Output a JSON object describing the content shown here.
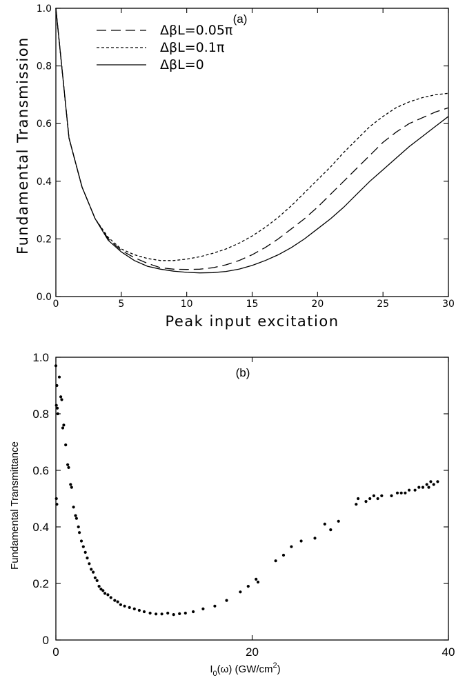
{
  "chart_data": [
    {
      "type": "line",
      "panel_label": "(a)",
      "title": "",
      "xlabel": "Peak input excitation",
      "ylabel": "Fundamental Transmission",
      "xlim": [
        0,
        30
      ],
      "ylim": [
        0,
        1.0
      ],
      "x_ticks": [
        0,
        5,
        10,
        15,
        20,
        25,
        30
      ],
      "y_ticks": [
        0.0,
        0.2,
        0.4,
        0.6,
        0.8,
        1.0
      ],
      "y_tick_labels": [
        "0.0",
        "0.2",
        "0.4",
        "0.6",
        "0.8",
        "1.0"
      ],
      "grid": false,
      "legend_position": "upper-left",
      "series": [
        {
          "name": "ΔβL=0.05π",
          "style": "dashed",
          "x": [
            0,
            1,
            2,
            3,
            4,
            5,
            6,
            7,
            8,
            9,
            10,
            11,
            12,
            13,
            14,
            15,
            16,
            17,
            18,
            19,
            20,
            21,
            22,
            23,
            24,
            25,
            26,
            27,
            28,
            29,
            30
          ],
          "y": [
            1.0,
            0.55,
            0.38,
            0.27,
            0.2,
            0.16,
            0.135,
            0.115,
            0.1,
            0.095,
            0.094,
            0.095,
            0.1,
            0.11,
            0.125,
            0.145,
            0.17,
            0.2,
            0.235,
            0.27,
            0.31,
            0.355,
            0.4,
            0.445,
            0.49,
            0.535,
            0.57,
            0.6,
            0.62,
            0.64,
            0.655
          ]
        },
        {
          "name": "ΔβL=0.1π",
          "style": "dotted",
          "x": [
            0,
            1,
            2,
            3,
            4,
            5,
            6,
            7,
            8,
            9,
            10,
            11,
            12,
            13,
            14,
            15,
            16,
            17,
            18,
            19,
            20,
            21,
            22,
            23,
            24,
            25,
            26,
            27,
            28,
            29,
            30
          ],
          "y": [
            1.0,
            0.55,
            0.38,
            0.27,
            0.205,
            0.165,
            0.145,
            0.132,
            0.125,
            0.125,
            0.13,
            0.138,
            0.15,
            0.165,
            0.185,
            0.21,
            0.24,
            0.275,
            0.315,
            0.36,
            0.405,
            0.45,
            0.5,
            0.545,
            0.59,
            0.625,
            0.655,
            0.675,
            0.69,
            0.7,
            0.705
          ]
        },
        {
          "name": "ΔβL=0",
          "style": "solid",
          "x": [
            0,
            1,
            2,
            3,
            4,
            5,
            6,
            7,
            8,
            9,
            10,
            11,
            12,
            13,
            14,
            15,
            16,
            17,
            18,
            19,
            20,
            21,
            22,
            23,
            24,
            25,
            26,
            27,
            28,
            29,
            30
          ],
          "y": [
            1.0,
            0.55,
            0.38,
            0.27,
            0.195,
            0.155,
            0.125,
            0.105,
            0.095,
            0.088,
            0.084,
            0.082,
            0.083,
            0.087,
            0.095,
            0.108,
            0.125,
            0.145,
            0.17,
            0.2,
            0.235,
            0.27,
            0.31,
            0.355,
            0.4,
            0.44,
            0.48,
            0.52,
            0.555,
            0.59,
            0.625
          ]
        }
      ]
    },
    {
      "type": "scatter",
      "panel_label": "(b)",
      "title": "",
      "xlabel_main": "I",
      "xlabel_sub": "0",
      "xlabel_mid": "(ω) (GW/cm",
      "xlabel_sup": "2",
      "xlabel_end": ")",
      "ylabel": "Fundamental Transmittance",
      "xlim": [
        0,
        40
      ],
      "ylim": [
        0,
        1.0
      ],
      "x_ticks": [
        0,
        20,
        40
      ],
      "y_ticks": [
        0,
        0.2,
        0.4,
        0.6,
        0.8,
        1.0
      ],
      "y_tick_labels": [
        "0",
        "0.2",
        "0.4",
        "0.6",
        "0.8",
        "1.0"
      ],
      "grid": false,
      "points": [
        [
          0.0,
          0.97
        ],
        [
          0.05,
          0.83
        ],
        [
          0.1,
          0.9
        ],
        [
          0.15,
          0.82
        ],
        [
          0.2,
          0.8
        ],
        [
          0.05,
          0.5
        ],
        [
          0.1,
          0.48
        ],
        [
          0.35,
          0.93
        ],
        [
          0.5,
          0.86
        ],
        [
          0.6,
          0.85
        ],
        [
          0.7,
          0.75
        ],
        [
          0.8,
          0.76
        ],
        [
          1.0,
          0.69
        ],
        [
          1.2,
          0.62
        ],
        [
          1.3,
          0.61
        ],
        [
          1.5,
          0.55
        ],
        [
          1.6,
          0.54
        ],
        [
          1.8,
          0.47
        ],
        [
          2.0,
          0.44
        ],
        [
          2.1,
          0.43
        ],
        [
          2.3,
          0.4
        ],
        [
          2.4,
          0.38
        ],
        [
          2.6,
          0.35
        ],
        [
          2.8,
          0.33
        ],
        [
          3.0,
          0.31
        ],
        [
          3.2,
          0.29
        ],
        [
          3.4,
          0.27
        ],
        [
          3.6,
          0.25
        ],
        [
          3.8,
          0.24
        ],
        [
          4.0,
          0.22
        ],
        [
          4.2,
          0.21
        ],
        [
          4.4,
          0.19
        ],
        [
          4.6,
          0.18
        ],
        [
          4.8,
          0.175
        ],
        [
          5.0,
          0.165
        ],
        [
          5.3,
          0.16
        ],
        [
          5.6,
          0.15
        ],
        [
          6.0,
          0.14
        ],
        [
          6.3,
          0.135
        ],
        [
          6.6,
          0.125
        ],
        [
          7.0,
          0.12
        ],
        [
          7.5,
          0.115
        ],
        [
          8.0,
          0.11
        ],
        [
          8.5,
          0.105
        ],
        [
          9.0,
          0.1
        ],
        [
          9.6,
          0.095
        ],
        [
          10.2,
          0.092
        ],
        [
          10.8,
          0.092
        ],
        [
          11.4,
          0.095
        ],
        [
          12.0,
          0.09
        ],
        [
          12.6,
          0.093
        ],
        [
          13.2,
          0.095
        ],
        [
          14.0,
          0.1
        ],
        [
          15.0,
          0.11
        ],
        [
          16.2,
          0.12
        ],
        [
          17.4,
          0.14
        ],
        [
          18.8,
          0.17
        ],
        [
          19.6,
          0.19
        ],
        [
          20.4,
          0.215
        ],
        [
          20.6,
          0.205
        ],
        [
          22.4,
          0.28
        ],
        [
          23.2,
          0.3
        ],
        [
          24.0,
          0.33
        ],
        [
          25.0,
          0.35
        ],
        [
          26.4,
          0.36
        ],
        [
          27.4,
          0.41
        ],
        [
          28.0,
          0.39
        ],
        [
          28.8,
          0.42
        ],
        [
          30.6,
          0.48
        ],
        [
          30.8,
          0.5
        ],
        [
          31.6,
          0.49
        ],
        [
          32.0,
          0.5
        ],
        [
          32.4,
          0.51
        ],
        [
          32.8,
          0.5
        ],
        [
          33.2,
          0.51
        ],
        [
          34.2,
          0.51
        ],
        [
          34.8,
          0.52
        ],
        [
          35.2,
          0.52
        ],
        [
          35.6,
          0.52
        ],
        [
          36.0,
          0.53
        ],
        [
          36.6,
          0.53
        ],
        [
          37.0,
          0.54
        ],
        [
          37.4,
          0.54
        ],
        [
          37.8,
          0.55
        ],
        [
          38.0,
          0.54
        ],
        [
          38.2,
          0.56
        ],
        [
          38.5,
          0.55
        ],
        [
          38.9,
          0.56
        ]
      ]
    }
  ]
}
